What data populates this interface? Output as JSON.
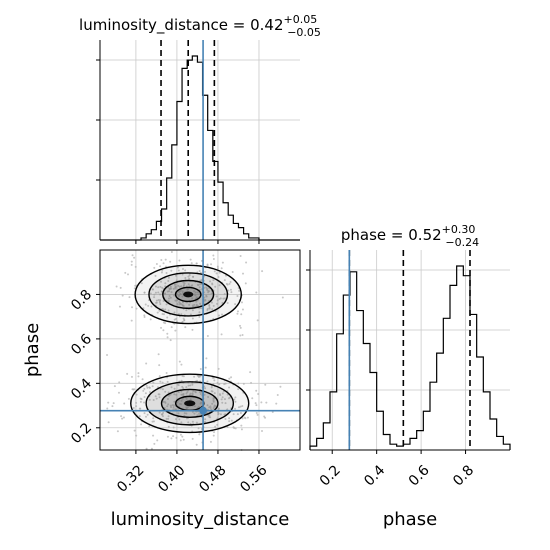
{
  "chart_data": [
    {
      "type": "histogram",
      "panel": "luminosity_distance-1d",
      "title": {
        "main": "luminosity_distance = 0.42",
        "sup": "+0.05",
        "sub": "−0.05"
      },
      "xlim": [
        0.25,
        0.64
      ],
      "bins": [
        0.25,
        0.26,
        0.27,
        0.28,
        0.29,
        0.3,
        0.31,
        0.32,
        0.33,
        0.34,
        0.35,
        0.36,
        0.37,
        0.38,
        0.39,
        0.4,
        0.41,
        0.42,
        0.43,
        0.44,
        0.45,
        0.46,
        0.47,
        0.48,
        0.49,
        0.5,
        0.51,
        0.52,
        0.53,
        0.54,
        0.55,
        0.56,
        0.57,
        0.58,
        0.59,
        0.6,
        0.61,
        0.62,
        0.63,
        0.64
      ],
      "counts": [
        0,
        0,
        0,
        0,
        0,
        0,
        0,
        0,
        1,
        3,
        5,
        9,
        15,
        30,
        46,
        67,
        83,
        87,
        89,
        86,
        70,
        53,
        38,
        28,
        18,
        12,
        8,
        6,
        3,
        1,
        1,
        0,
        0,
        0,
        0,
        0,
        0,
        0,
        0
      ],
      "quantile_lines": [
        0.369,
        0.422,
        0.473
      ],
      "truth": 0.451,
      "grid": true
    },
    {
      "type": "histogram",
      "panel": "phase-1d",
      "title": {
        "main": "phase = 0.52",
        "sup": "+0.30",
        "sub": "−0.24"
      },
      "xlim": [
        0.1,
        1.0
      ],
      "bins": [
        0.1,
        0.13,
        0.16,
        0.19,
        0.22,
        0.25,
        0.28,
        0.31,
        0.34,
        0.37,
        0.4,
        0.43,
        0.46,
        0.49,
        0.52,
        0.55,
        0.58,
        0.61,
        0.64,
        0.67,
        0.7,
        0.73,
        0.76,
        0.79,
        0.82,
        0.85,
        0.88,
        0.91,
        0.94,
        0.97,
        1.0
      ],
      "counts": [
        2,
        6,
        14,
        30,
        60,
        80,
        92,
        72,
        55,
        40,
        20,
        8,
        3,
        2,
        3,
        6,
        10,
        20,
        35,
        50,
        68,
        85,
        95,
        90,
        70,
        48,
        30,
        16,
        7,
        3
      ],
      "quantile_lines": [
        0.277,
        0.52,
        0.82
      ],
      "truth": 0.277,
      "grid": true
    },
    {
      "type": "contour-2d",
      "panel": "luminosity_distance-vs-phase",
      "xlim": [
        0.25,
        0.64
      ],
      "ylim": [
        0.1,
        1.0
      ],
      "modes": [
        {
          "x": 0.422,
          "y": 0.8,
          "sx": 0.045,
          "sy": 0.06
        },
        {
          "x": 0.425,
          "y": 0.31,
          "sx": 0.05,
          "sy": 0.06
        }
      ],
      "truth": {
        "x": 0.451,
        "y": 0.277
      },
      "grid": true
    }
  ],
  "axes": {
    "x_label_left": "luminosity_distance",
    "x_label_right": "phase",
    "y_label": "phase",
    "ld_ticks": [
      "0.32",
      "0.40",
      "0.48",
      "0.56"
    ],
    "ld_tick_values": [
      0.32,
      0.4,
      0.48,
      0.56
    ],
    "phase_ticks": [
      "0.2",
      "0.4",
      "0.6",
      "0.8"
    ],
    "phase_tick_values": [
      0.2,
      0.4,
      0.6,
      0.8
    ]
  },
  "colors": {
    "truth": "#4682b4",
    "hist_line": "#000000",
    "grid": "#c9c9c9",
    "density": "#6b6b6b",
    "contour": "#000000",
    "scatter": "#b0b0b0"
  }
}
